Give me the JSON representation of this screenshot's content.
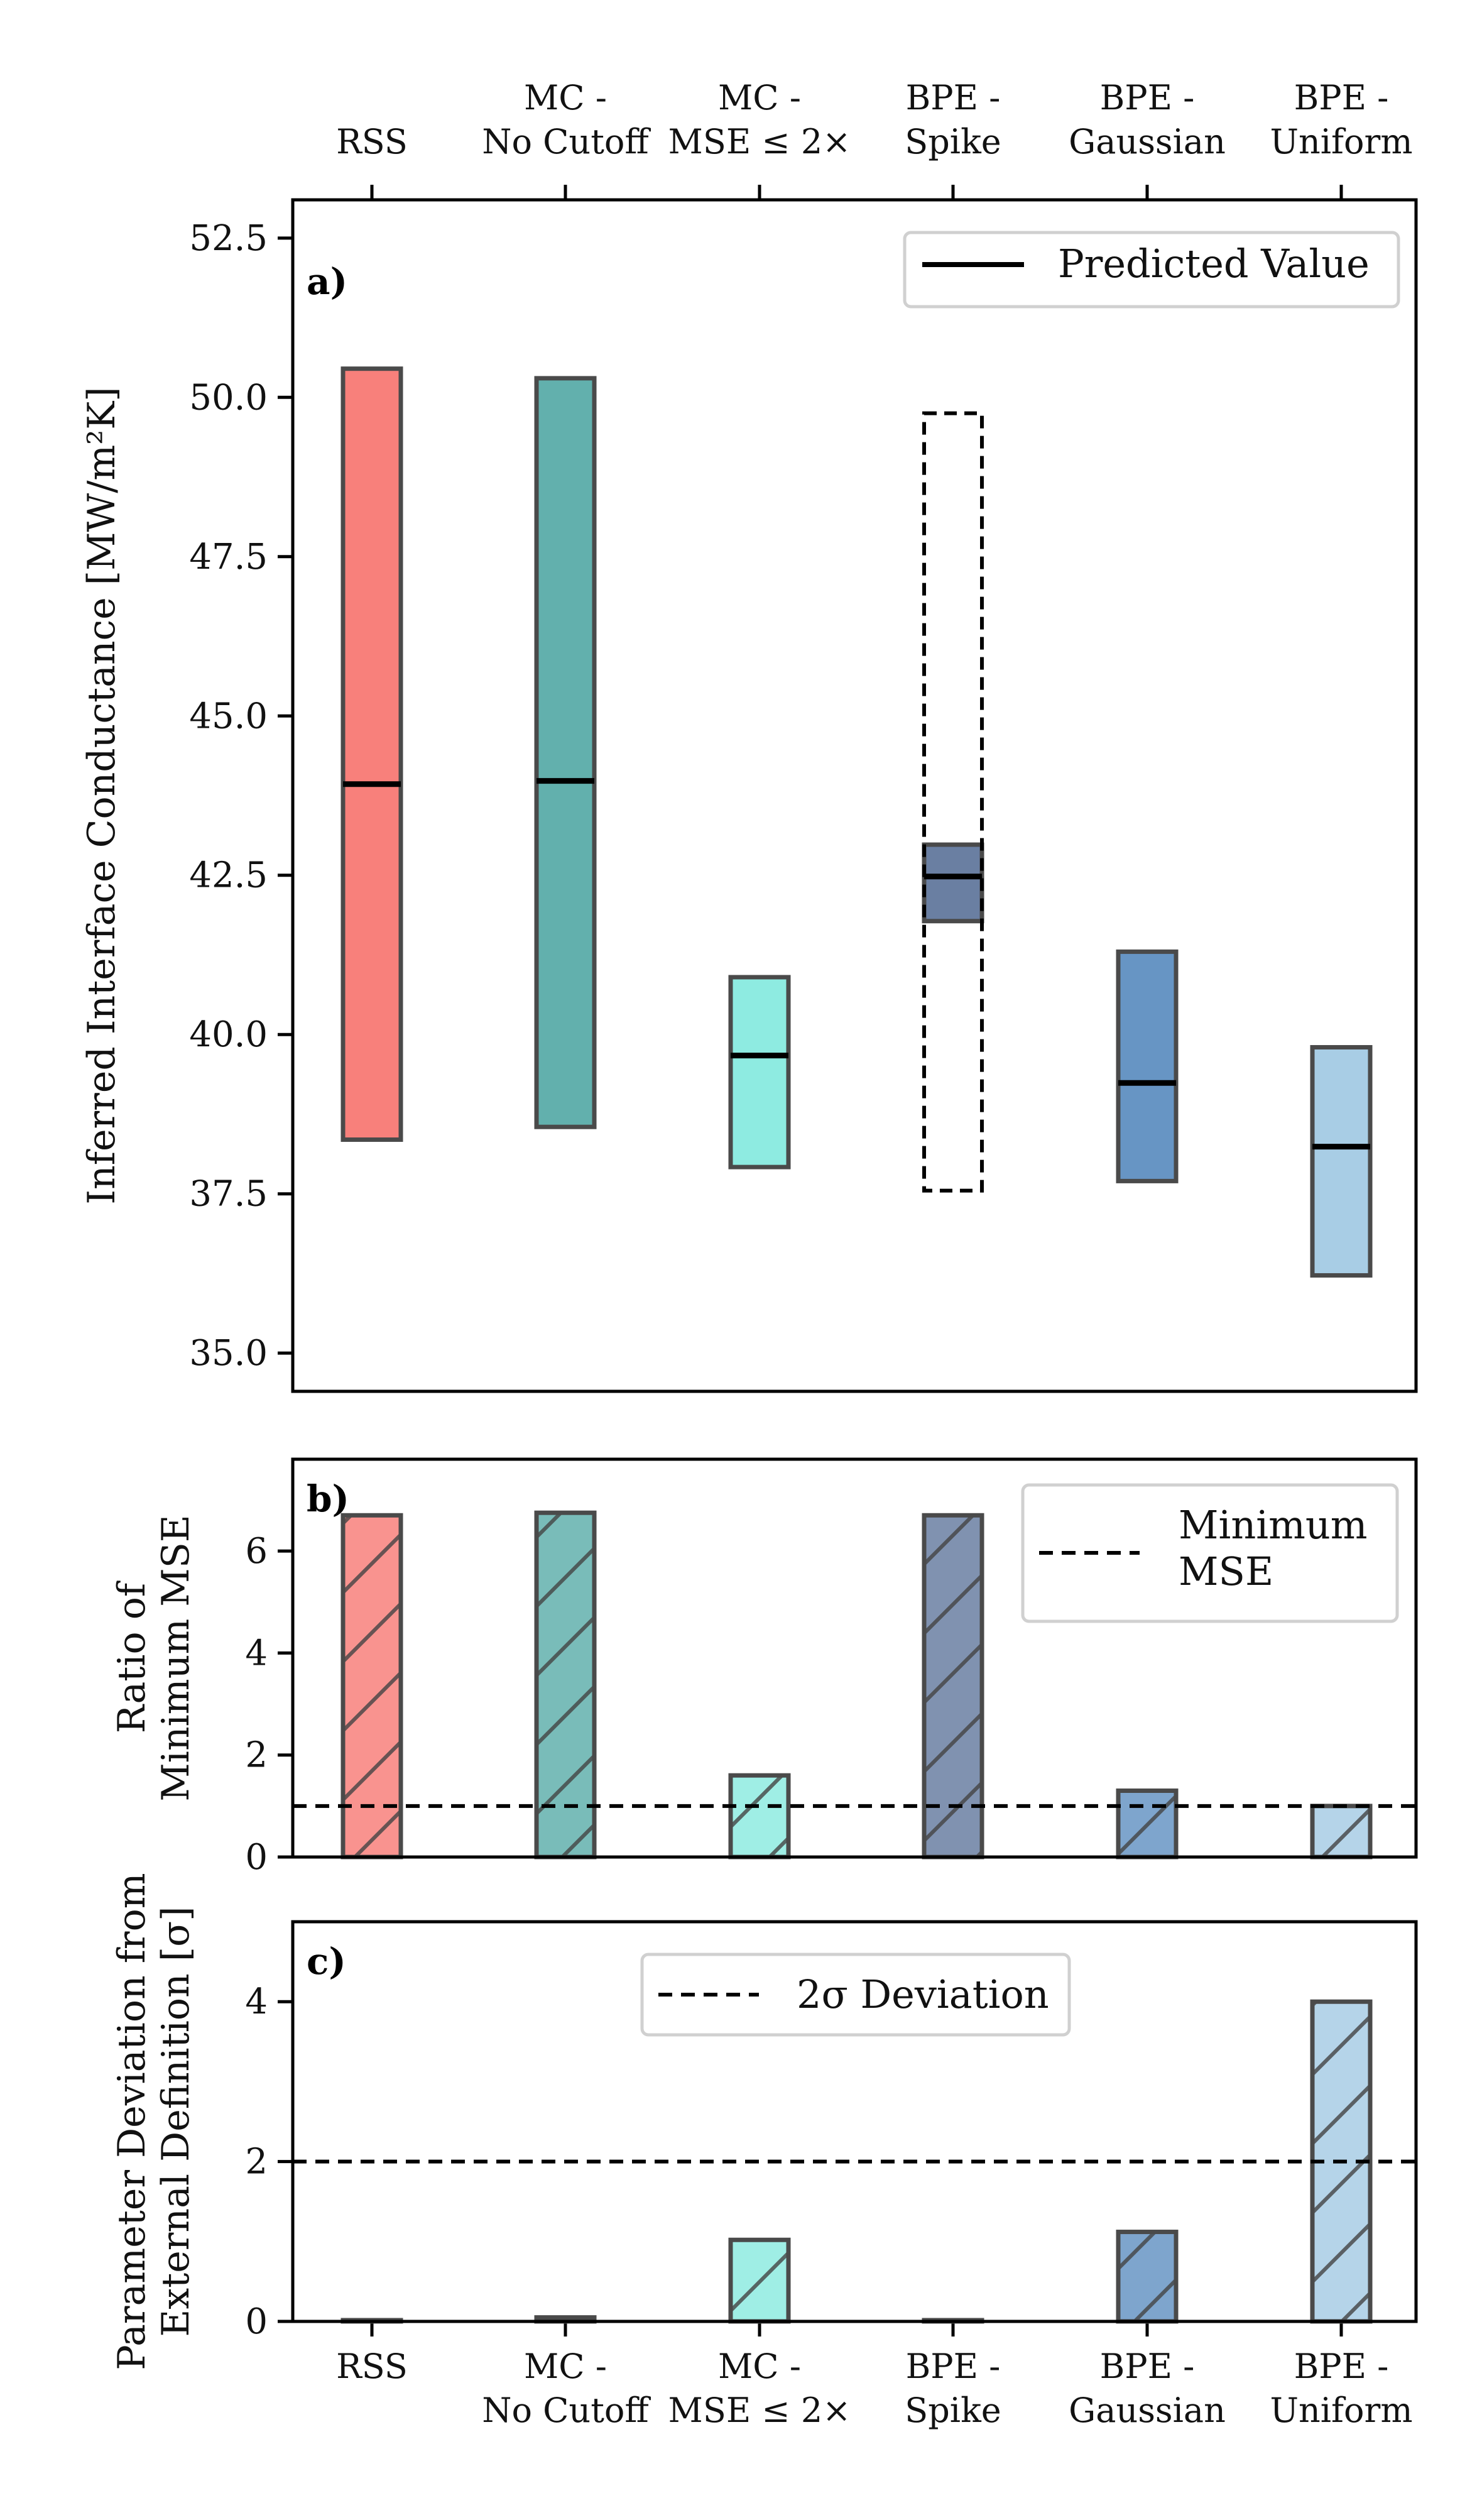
{
  "chart_data": [
    {
      "panel": "a)",
      "type": "range",
      "categories": [
        "RSS",
        "MC - No Cutoff",
        "MC - MSE ≤ 2×",
        "BPE - Spike",
        "BPE - Gaussian",
        "BPE - Uniform"
      ],
      "top_tick_labels": [
        [
          "RSS"
        ],
        [
          "MC -",
          "No Cutoff"
        ],
        [
          "MC -",
          "MSE ≤ 2×"
        ],
        [
          "BPE -",
          "Spike"
        ],
        [
          "BPE -",
          "Gaussian"
        ],
        [
          "BPE -",
          "Uniform"
        ]
      ],
      "ylabel": "Inferred Interface Conductance [MW/m²K]",
      "ylim": [
        34.4,
        53.1
      ],
      "yticks": [
        35.0,
        37.5,
        40.0,
        42.5,
        45.0,
        47.5,
        50.0,
        52.5
      ],
      "ytick_labels": [
        "35.0",
        "37.5",
        "40.0",
        "42.5",
        "45.0",
        "47.5",
        "50.0",
        "52.5"
      ],
      "ranges": [
        {
          "low": 38.35,
          "high": 50.45,
          "predicted": 43.93,
          "color": "#f8807b"
        },
        {
          "low": 38.55,
          "high": 50.3,
          "predicted": 43.98,
          "color": "#62b0ad"
        },
        {
          "low": 37.92,
          "high": 40.9,
          "predicted": 39.67,
          "color": "#8eebe1"
        },
        {
          "low": 41.78,
          "high": 42.98,
          "predicted": 42.48,
          "color": "#6a7fa2"
        },
        {
          "low": 37.7,
          "high": 41.3,
          "predicted": 39.24,
          "color": "#6795c4"
        },
        {
          "low": 36.22,
          "high": 39.8,
          "predicted": 38.24,
          "color": "#a8cde5"
        }
      ],
      "dashed_range": {
        "category": "BPE - Spike",
        "low": 37.55,
        "high": 49.75
      },
      "legend": {
        "label": "Predicted Value",
        "placement": "top-right"
      }
    },
    {
      "panel": "b)",
      "type": "bar",
      "categories": [
        "RSS",
        "MC - No Cutoff",
        "MC - MSE ≤ 2×",
        "BPE - Spike",
        "BPE - Gaussian",
        "BPE - Uniform"
      ],
      "values": [
        6.7,
        6.75,
        1.6,
        6.7,
        1.3,
        1.0
      ],
      "ylabel_lines": [
        "Ratio of",
        "Minimum MSE"
      ],
      "ylim": [
        0,
        7.8
      ],
      "yticks": [
        0,
        2,
        4,
        6
      ],
      "ytick_labels": [
        "0",
        "2",
        "4",
        "6"
      ],
      "reference_line": 1.0,
      "legend": {
        "label_lines": [
          "Minimum",
          "MSE"
        ],
        "placement": "top-right"
      }
    },
    {
      "panel": "c)",
      "type": "bar",
      "categories": [
        "RSS",
        "MC - No Cutoff",
        "MC - MSE ≤ 2×",
        "BPE - Spike",
        "BPE - Gaussian",
        "BPE - Uniform"
      ],
      "bottom_tick_labels": [
        [
          "RSS"
        ],
        [
          "MC -",
          "No Cutoff"
        ],
        [
          "MC -",
          "MSE ≤ 2×"
        ],
        [
          "BPE -",
          "Spike"
        ],
        [
          "BPE -",
          "Gaussian"
        ],
        [
          "BPE -",
          "Uniform"
        ]
      ],
      "values": [
        0.0,
        0.05,
        1.02,
        0.0,
        1.12,
        4.0
      ],
      "ylabel_lines": [
        "Parameter Deviation from",
        "External Definition [σ]"
      ],
      "ylim": [
        0,
        5.0
      ],
      "yticks": [
        0,
        2,
        4
      ],
      "ytick_labels": [
        "0",
        "2",
        "4"
      ],
      "reference_line": 2.0,
      "legend": {
        "label": "2σ Deviation",
        "placement": "top-center"
      }
    }
  ]
}
